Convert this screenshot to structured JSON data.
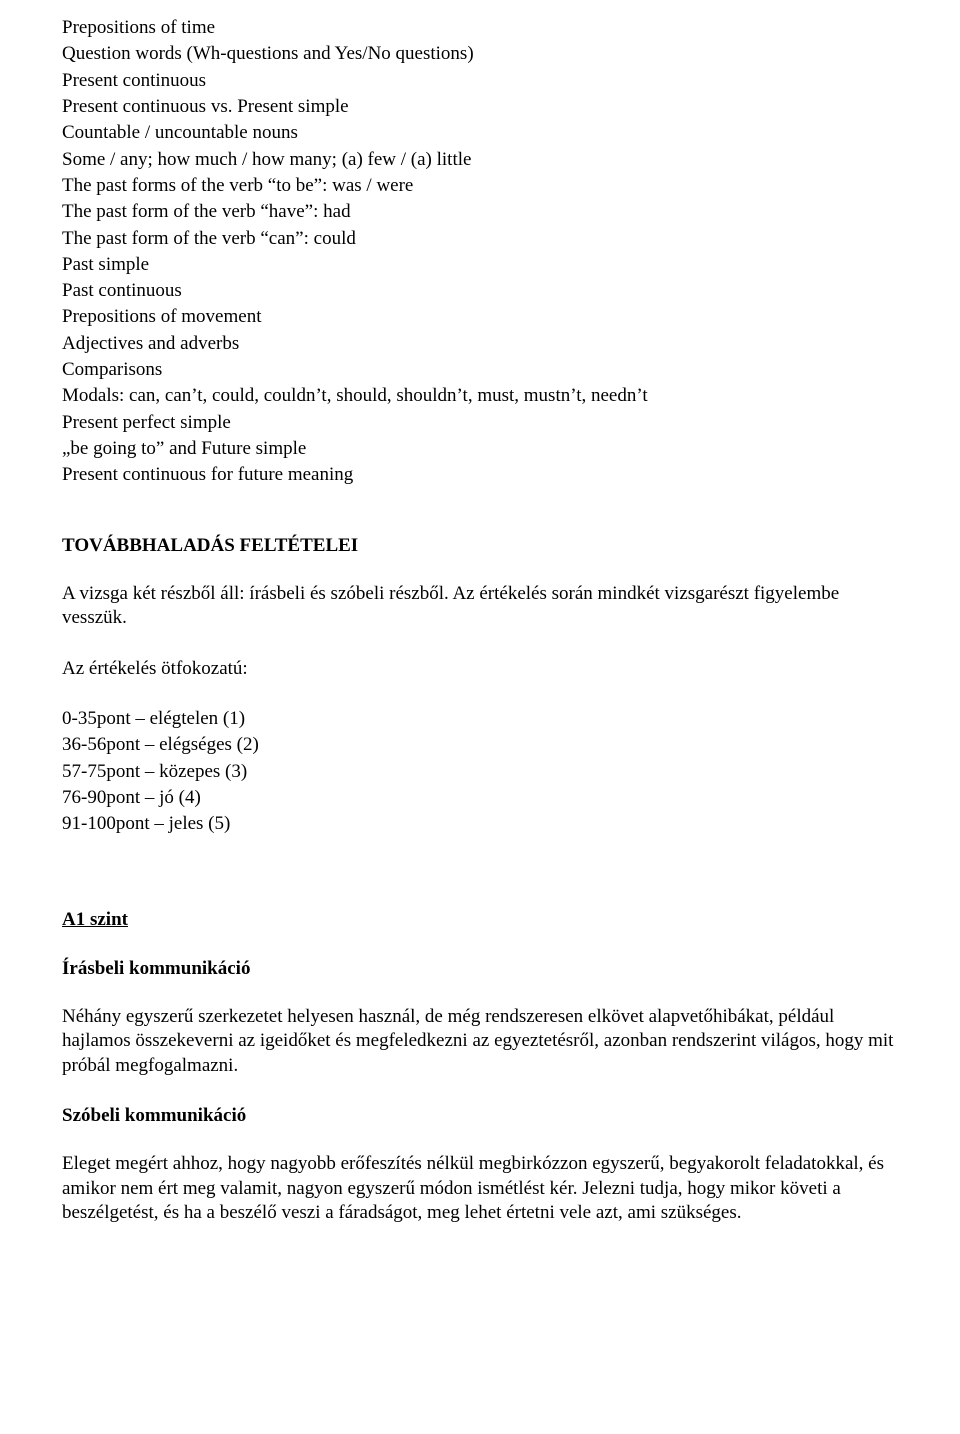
{
  "grammar_list": {
    "items": [
      "Prepositions of time",
      "Question words (Wh-questions and Yes/No questions)",
      "Present continuous",
      "Present continuous vs. Present simple",
      "Countable / uncountable nouns",
      "Some / any; how much / how many; (a) few / (a) little",
      "The past forms of the verb “to be”: was / were",
      "The past form of the verb “have”: had",
      "The past form of the verb “can”: could",
      "Past simple",
      "Past continuous",
      "Prepositions of movement",
      "Adjectives and adverbs",
      "Comparisons",
      "Modals: can, can’t, could, couldn’t, should, shouldn’t, must, mustn’t, needn’t",
      "Present perfect simple",
      "„be going to” and Future simple",
      "Present continuous for future meaning"
    ]
  },
  "section_progress": {
    "title": "TOVÁBBHALADÁS FELTÉTELEI",
    "intro": "A vizsga két részből áll: írásbeli és szóbeli részből. Az értékelés során mindkét vizsgarészt figyelembe vesszük.",
    "grading_label": "Az értékelés ötfokozatú:",
    "grades": [
      "0-35pont – elégtelen (1)",
      "36-56pont – elégséges (2)",
      "57-75pont – közepes (3)",
      "76-90pont – jó (4)",
      "91-100pont – jeles (5)"
    ]
  },
  "level": {
    "heading": "A1 szint",
    "written_heading": "Írásbeli kommunikáció",
    "written_body": "Néhány egyszerű szerkezetet helyesen használ, de még rendszeresen elkövet alapvetőhibákat, például hajlamos összekeverni az igeidőket és megfeledkezni az egyeztetésről, azonban rendszerint világos, hogy mit próbál megfogalmazni.",
    "spoken_heading": "Szóbeli kommunikáció",
    "spoken_body": "Eleget megért ahhoz, hogy nagyobb erőfeszítés nélkül megbirkózzon egyszerű, begyakorolt feladatokkal, és amikor nem ért meg valamit, nagyon egyszerű módon ismétlést kér. Jelezni tudja, hogy mikor követi a beszélgetést, és ha a beszélő veszi a fáradságot, meg lehet értetni vele azt, ami szükséges."
  }
}
